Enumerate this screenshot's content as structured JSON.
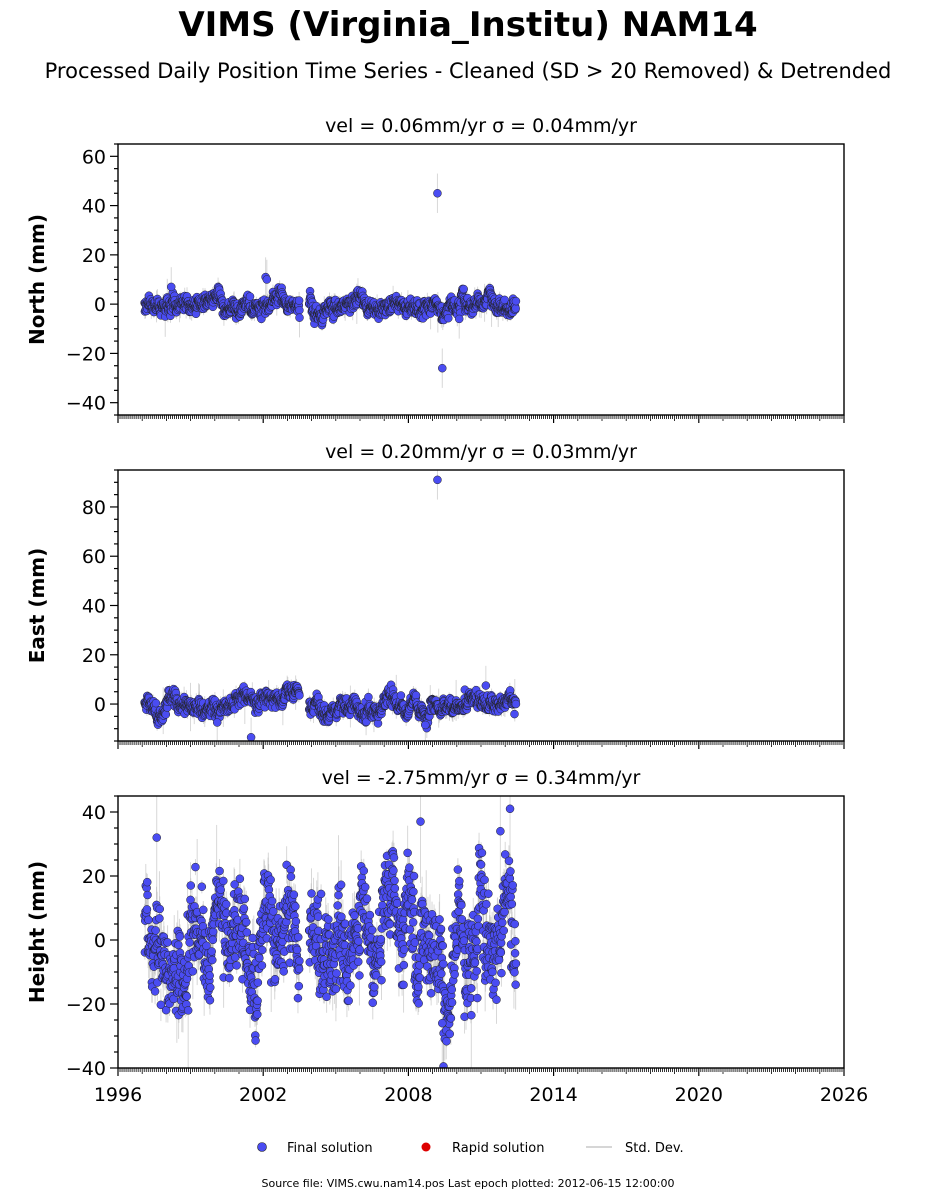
{
  "title": "VIMS (Virginia_Institu) NAM14",
  "subtitle": "Processed Daily Position Time Series - Cleaned (SD > 20 Removed) & Detrended",
  "source_note": "Source file: VIMS.cwu.nam14.pos  Last epoch plotted: 2012-06-15 12:00:00",
  "legend": {
    "final": "Final solution",
    "rapid": "Rapid solution",
    "std": "Std. Dev."
  },
  "colors": {
    "final": "#4a4cf2",
    "rapid": "#dd0000",
    "std": "#b8b8b8",
    "edge": "#222222"
  },
  "chart_data": [
    {
      "type": "scatter",
      "panel_title": "vel = 0.06mm/yr   σ = 0.04mm/yr",
      "ylabel": "North (mm)",
      "xlim": [
        1996,
        2026
      ],
      "ylim": [
        -45,
        65
      ],
      "xticks": [
        1996,
        2002,
        2008,
        2014,
        2020,
        2026
      ],
      "yticks": [
        -40,
        -20,
        0,
        20,
        40,
        60
      ],
      "segments": [
        [
          1997.1,
          2003.5
        ],
        [
          2003.9,
          2012.45
        ]
      ],
      "noise_sd": 1.8,
      "err_sd": 2.5,
      "outliers": [
        [
          2002.1,
          11
        ],
        [
          2002.15,
          10
        ],
        [
          2003.5,
          -5.5
        ],
        [
          2009.2,
          45
        ],
        [
          2009.4,
          -26
        ],
        [
          2010.1,
          -6
        ],
        [
          1998.2,
          7
        ]
      ]
    },
    {
      "type": "scatter",
      "panel_title": "vel = 0.20mm/yr   σ = 0.03mm/yr",
      "ylabel": "East (mm)",
      "xlim": [
        1996,
        2026
      ],
      "ylim": [
        -15,
        95
      ],
      "xticks": [
        1996,
        2002,
        2008,
        2014,
        2020,
        2026
      ],
      "yticks": [
        0,
        20,
        40,
        60,
        80
      ],
      "segments": [
        [
          1997.1,
          2003.5
        ],
        [
          2003.9,
          2012.45
        ]
      ],
      "noise_sd": 1.8,
      "err_sd": 2.5,
      "outliers": [
        [
          2009.2,
          91
        ],
        [
          2001.5,
          -13.5
        ],
        [
          2000.1,
          -7.5
        ],
        [
          2008.7,
          -8.5
        ],
        [
          2011.2,
          7.5
        ]
      ]
    },
    {
      "type": "scatter",
      "panel_title": "vel = -2.75mm/yr   σ = 0.34mm/yr",
      "ylabel": "Height (mm)",
      "xlim": [
        1996,
        2026
      ],
      "ylim": [
        -40,
        45
      ],
      "xticks": [
        1996,
        2002,
        2008,
        2014,
        2020,
        2026
      ],
      "yticks": [
        -40,
        -20,
        0,
        20,
        40
      ],
      "segments": [
        [
          1997.1,
          2003.5
        ],
        [
          2003.9,
          2012.45
        ]
      ],
      "noise_sd": 7.5,
      "err_sd": 6,
      "outliers": [
        [
          2012.2,
          41
        ],
        [
          2009.4,
          -26
        ],
        [
          2009.45,
          -39.5
        ],
        [
          2010.6,
          -23.5
        ],
        [
          1997.6,
          32
        ],
        [
          2008.5,
          37
        ],
        [
          2011.8,
          34
        ],
        [
          1998.9,
          -22
        ]
      ]
    }
  ]
}
